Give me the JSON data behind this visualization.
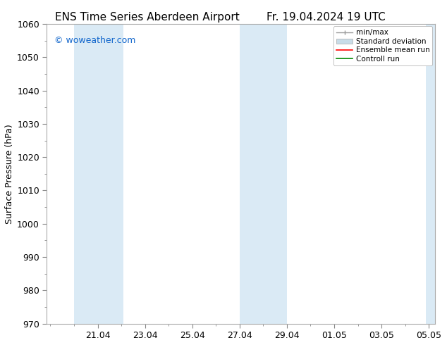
{
  "title": "ENS Time Series Aberdeen Airport",
  "title_right": "Fr. 19.04.2024 19 UTC",
  "ylabel": "Surface Pressure (hPa)",
  "watermark": "© woweather.com",
  "watermark_color": "#1166cc",
  "ylim": [
    970,
    1060
  ],
  "yticks": [
    970,
    980,
    990,
    1000,
    1010,
    1020,
    1030,
    1040,
    1050,
    1060
  ],
  "xtick_labels": [
    "21.04",
    "23.04",
    "25.04",
    "27.04",
    "29.04",
    "01.05",
    "03.05",
    "05.05"
  ],
  "band_color": "#daeaf5",
  "legend_entries": [
    {
      "label": "min/max",
      "color": "#aaaaaa",
      "style": "errorbar"
    },
    {
      "label": "Standard deviation",
      "color": "#c8dce8",
      "style": "fill"
    },
    {
      "label": "Ensemble mean run",
      "color": "#ff0000",
      "style": "line"
    },
    {
      "label": "Controll run",
      "color": "#008800",
      "style": "line"
    }
  ],
  "background_color": "#ffffff",
  "plot_bg_color": "#ffffff",
  "spine_color": "#aaaaaa",
  "tick_color": "#000000",
  "font_size": 9,
  "title_font_size": 11
}
